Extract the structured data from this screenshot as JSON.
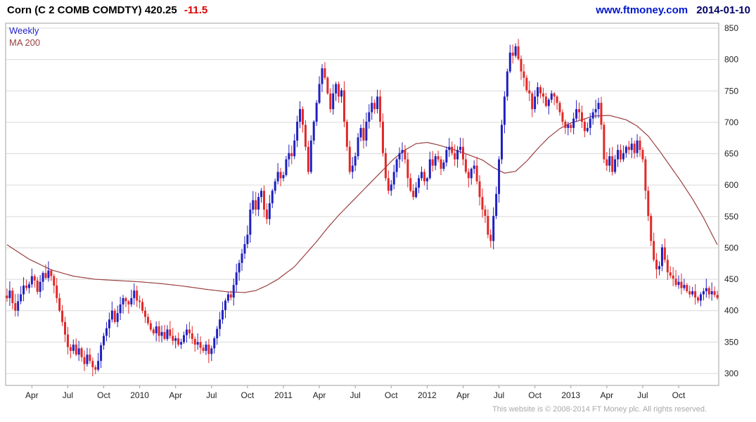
{
  "header": {
    "title_text": "Corn (C 2 COMB COMDTY) 420.25",
    "change": "-11.5",
    "source_url": "www.ftmoney.com",
    "date": "2014-01-10"
  },
  "legend": {
    "series_price": "Weekly",
    "series_ma": "MA 200"
  },
  "footer": {
    "copyright": "This website is © 2008-2014 FT Money plc. All rights reserved."
  },
  "colors": {
    "up_candle": "#2020c0",
    "down_candle": "#e22828",
    "ma_line": "#994040",
    "grid": "#d9d9d9",
    "border": "#a0a0a0",
    "axis_text": "#222222"
  },
  "chart_data": {
    "type": "candlestick",
    "frequency": "weekly",
    "instrument": "Corn (C 2 COMB COMDTY)",
    "last_price": 420.25,
    "change": -11.5,
    "ylim": [
      300,
      850
    ],
    "yticks": [
      300,
      350,
      400,
      450,
      500,
      550,
      600,
      650,
      700,
      750,
      800,
      850
    ],
    "grid": "horizontal-only",
    "legend_position": "top-left-inside",
    "x_labels": [
      {
        "label": "Apr",
        "week": 9
      },
      {
        "label": "Jul",
        "week": 22
      },
      {
        "label": "Oct",
        "week": 35
      },
      {
        "label": "2010",
        "week": 48
      },
      {
        "label": "Apr",
        "week": 61
      },
      {
        "label": "Jul",
        "week": 74
      },
      {
        "label": "Oct",
        "week": 87
      },
      {
        "label": "2011",
        "week": 100
      },
      {
        "label": "Apr",
        "week": 113
      },
      {
        "label": "Jul",
        "week": 126
      },
      {
        "label": "Oct",
        "week": 139
      },
      {
        "label": "2012",
        "week": 152
      },
      {
        "label": "Apr",
        "week": 165
      },
      {
        "label": "Jul",
        "week": 178
      },
      {
        "label": "Oct",
        "week": 191
      },
      {
        "label": "2013",
        "week": 204
      },
      {
        "label": "Apr",
        "week": 217
      },
      {
        "label": "Jul",
        "week": 230
      },
      {
        "label": "Oct",
        "week": 243
      }
    ],
    "closes": [
      420,
      432,
      412,
      400,
      415,
      426,
      440,
      436,
      442,
      455,
      448,
      430,
      446,
      460,
      452,
      464,
      455,
      440,
      420,
      400,
      382,
      362,
      342,
      336,
      346,
      330,
      340,
      326,
      315,
      330,
      320,
      310,
      306,
      320,
      345,
      360,
      372,
      386,
      400,
      382,
      396,
      410,
      420,
      415,
      410,
      420,
      432,
      416,
      414,
      400,
      390,
      380,
      370,
      364,
      375,
      360,
      366,
      355,
      370,
      360,
      352,
      356,
      346,
      350,
      361,
      370,
      364,
      355,
      346,
      350,
      341,
      336,
      346,
      331,
      340,
      356,
      371,
      386,
      401,
      416,
      426,
      421,
      441,
      461,
      476,
      491,
      506,
      521,
      561,
      576,
      561,
      581,
      591,
      561,
      546,
      571,
      591,
      606,
      621,
      611,
      616,
      641,
      651,
      646,
      671,
      701,
      721,
      696,
      661,
      621,
      671,
      701,
      731,
      761,
      786,
      771,
      746,
      721,
      746,
      761,
      741,
      751,
      701,
      661,
      621,
      631,
      646,
      676,
      691,
      671,
      701,
      716,
      731,
      721,
      741,
      701,
      651,
      611,
      591,
      601,
      621,
      641,
      651,
      656,
      641,
      611,
      591,
      581,
      596,
      611,
      621,
      606,
      611,
      641,
      631,
      646,
      641,
      626,
      636,
      656,
      661,
      651,
      641,
      656,
      661,
      641,
      621,
      611,
      626,
      631,
      606,
      581,
      561,
      551,
      521,
      511,
      551,
      586,
      641,
      696,
      741,
      781,
      811,
      806,
      821,
      801,
      781,
      771,
      751,
      746,
      721,
      741,
      756,
      746,
      741,
      726,
      736,
      746,
      741,
      731,
      716,
      701,
      691,
      696,
      691,
      706,
      721,
      716,
      701,
      686,
      691,
      706,
      716,
      721,
      731,
      696,
      641,
      631,
      646,
      621,
      641,
      656,
      641,
      651,
      661,
      656,
      666,
      651,
      671,
      656,
      641,
      591,
      551,
      511,
      481,
      466,
      471,
      501,
      481,
      461,
      456,
      451,
      441,
      446,
      436,
      441,
      431,
      426,
      431,
      421,
      416,
      426,
      431,
      436,
      426,
      431,
      425,
      420.25
    ],
    "ma200_anchors": [
      [
        0,
        505
      ],
      [
        8,
        482
      ],
      [
        16,
        465
      ],
      [
        24,
        455
      ],
      [
        32,
        450
      ],
      [
        40,
        448
      ],
      [
        48,
        446
      ],
      [
        56,
        443
      ],
      [
        64,
        439
      ],
      [
        72,
        434
      ],
      [
        80,
        430
      ],
      [
        86,
        429
      ],
      [
        90,
        432
      ],
      [
        94,
        440
      ],
      [
        98,
        450
      ],
      [
        104,
        470
      ],
      [
        108,
        490
      ],
      [
        112,
        510
      ],
      [
        116,
        532
      ],
      [
        120,
        552
      ],
      [
        124,
        570
      ],
      [
        128,
        588
      ],
      [
        132,
        606
      ],
      [
        136,
        624
      ],
      [
        140,
        642
      ],
      [
        144,
        656
      ],
      [
        148,
        666
      ],
      [
        152,
        668
      ],
      [
        156,
        664
      ],
      [
        162,
        656
      ],
      [
        166,
        650
      ],
      [
        172,
        640
      ],
      [
        176,
        628
      ],
      [
        180,
        619
      ],
      [
        184,
        622
      ],
      [
        188,
        638
      ],
      [
        192,
        658
      ],
      [
        196,
        676
      ],
      [
        200,
        690
      ],
      [
        204,
        699
      ],
      [
        208,
        704
      ],
      [
        212,
        710
      ],
      [
        218,
        711
      ],
      [
        224,
        704
      ],
      [
        228,
        694
      ],
      [
        232,
        678
      ],
      [
        236,
        655
      ],
      [
        240,
        630
      ],
      [
        244,
        605
      ],
      [
        248,
        578
      ],
      [
        252,
        548
      ],
      [
        255,
        522
      ],
      [
        257,
        505
      ]
    ]
  }
}
